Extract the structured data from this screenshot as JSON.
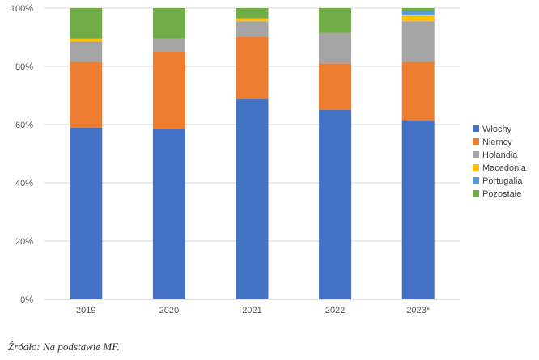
{
  "chart_data": {
    "type": "bar",
    "stacked": true,
    "normalized_percent": true,
    "categories": [
      "2019",
      "2020",
      "2021",
      "2022",
      "2023*"
    ],
    "series": [
      {
        "name": "Włochy",
        "color": "#4472C4",
        "values": [
          59,
          58.5,
          69,
          65,
          61.5
        ]
      },
      {
        "name": "Niemcy",
        "color": "#ED7D31",
        "values": [
          22.5,
          26.5,
          21,
          16,
          20
        ]
      },
      {
        "name": "Holandia",
        "color": "#A5A5A5",
        "values": [
          7,
          4.5,
          5.5,
          10.5,
          14
        ]
      },
      {
        "name": "Macedonia",
        "color": "#FFC000",
        "values": [
          1,
          0,
          1,
          0,
          2
        ]
      },
      {
        "name": "Portugalia",
        "color": "#5B9BD5",
        "values": [
          0,
          0,
          0,
          0,
          1.5
        ]
      },
      {
        "name": "Pozostałe",
        "color": "#70AD47",
        "values": [
          10.5,
          10.5,
          3.5,
          8.5,
          1
        ]
      }
    ],
    "y_ticks": [
      "0%",
      "20%",
      "40%",
      "60%",
      "80%",
      "100%"
    ],
    "ylim": [
      0,
      100
    ],
    "grid": true,
    "legend_position": "right"
  },
  "source_note": "Źródło: Na podstawie MF."
}
